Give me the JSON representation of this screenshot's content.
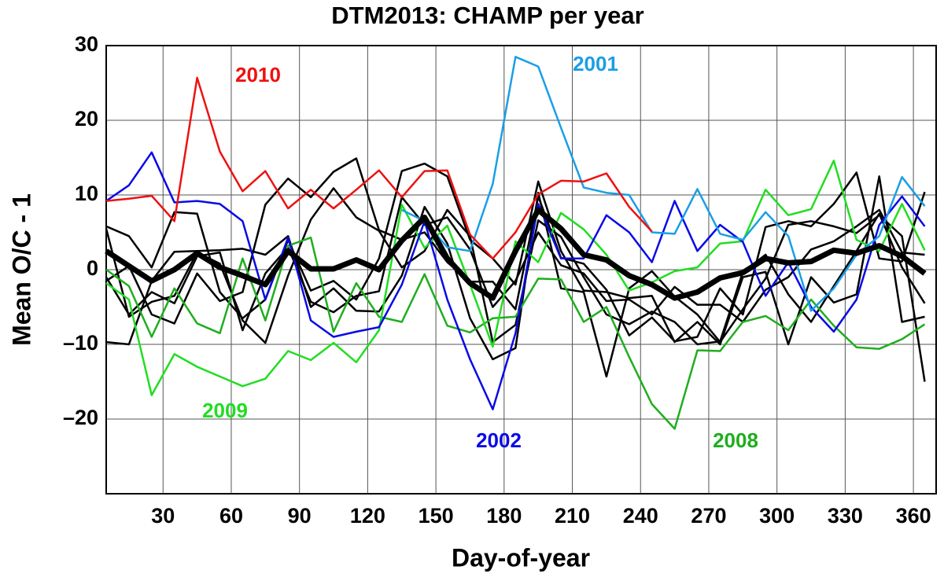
{
  "chart_data": {
    "type": "line",
    "title": "DTM2013: CHAMP per year",
    "x_label": "Day-of-year",
    "y_label": "Mean O/C - 1",
    "x": [
      5,
      15,
      25,
      35,
      45,
      55,
      65,
      75,
      85,
      95,
      105,
      115,
      125,
      135,
      145,
      155,
      165,
      175,
      185,
      195,
      205,
      215,
      225,
      235,
      245,
      255,
      265,
      275,
      285,
      295,
      305,
      315,
      325,
      335,
      345,
      355,
      365
    ],
    "xlim": [
      5,
      370
    ],
    "xticks": [
      30,
      60,
      90,
      120,
      150,
      180,
      210,
      240,
      270,
      300,
      330,
      360
    ],
    "ylim": [
      -30,
      30
    ],
    "yticks": [
      30,
      20,
      10,
      0,
      {
        "value": -10,
        "label": "–10"
      },
      {
        "value": -20,
        "label": "–20"
      }
    ],
    "grid": true,
    "series": [
      {
        "color": "#000000",
        "values": [
          5.8,
          4.5,
          0.3,
          7.7,
          7.5,
          -3,
          -6.5,
          -4,
          4,
          -2.8,
          -1.5,
          -4,
          1.5,
          13.2,
          14.2,
          12.5,
          4,
          1.5,
          -2,
          11.8,
          2.5,
          -2.8,
          -3,
          -3.8,
          -3.5,
          -9.7,
          -7,
          -10,
          -1,
          -0.3,
          -10,
          -1,
          -4.4,
          -3.3,
          12.5,
          -7,
          -6.3
        ]
      },
      {
        "color": "#000000",
        "values": [
          -9.7,
          -10,
          -1.5,
          2.4,
          2.5,
          2.6,
          2.8,
          2,
          4.5,
          -5,
          -2.5,
          -5.5,
          -5.6,
          -0.8,
          8.4,
          3.5,
          -6.5,
          -12,
          -10.5,
          10.3,
          -2.5,
          -3,
          -14.3,
          -2.5,
          -0.2,
          -3.6,
          -6,
          -9.7,
          -5.3,
          -1.2,
          6,
          6.5,
          5.8,
          4.9,
          7.3,
          4.5,
          -15
        ]
      },
      {
        "color": "#000000",
        "values": [
          -1.5,
          0.5,
          -6,
          -7.2,
          -0.5,
          -4.2,
          -3,
          8.7,
          12.2,
          9.7,
          13.1,
          14.9,
          5.3,
          4,
          5,
          1,
          -1.6,
          -1.6,
          -5.3,
          9.8,
          1.6,
          0.8,
          -2.7,
          -8.8,
          -6.4,
          -9.6,
          -9,
          -2.5,
          -6,
          5.7,
          6.5,
          5.8,
          8.8,
          13,
          1.5,
          1.1,
          10.4
        ]
      },
      {
        "color": "#000000",
        "values": [
          5.5,
          -6.3,
          -4.3,
          -3.5,
          2.3,
          0.8,
          -6.8,
          -9.8,
          -0.8,
          6.7,
          10.9,
          7,
          5.2,
          0.3,
          2.5,
          8,
          4.5,
          -9.7,
          -7.4,
          6.6,
          4.4,
          -1,
          -6,
          -7.3,
          -5.6,
          -7,
          -10,
          -9.6,
          -0.3,
          2,
          -3.3,
          -7,
          -2.2,
          2.5,
          7.5,
          0.3,
          -4.5
        ]
      },
      {
        "color": "#000000",
        "values": [
          -1,
          -6,
          -3,
          -4.5,
          1.8,
          2.3,
          -8.1,
          -0.5,
          3,
          -4.3,
          -5.7,
          -3.5,
          -2.9,
          9.7,
          6,
          7,
          2.7,
          -5,
          -1.5,
          5,
          0.6,
          -0.5,
          -4.2,
          -4,
          -6,
          -2.3,
          -4.7,
          -4.7,
          -7,
          -2.7,
          -1,
          2.7,
          3.8,
          5.8,
          8,
          2.3,
          2
        ]
      },
      {
        "name": "2008",
        "color": "#1fae1f",
        "values": [
          0,
          -2.2,
          -9,
          -2.5,
          -7.2,
          -8.5,
          1.5,
          -6.8,
          3.2,
          4.3,
          -8.3,
          -1.8,
          -6.3,
          -7,
          -0.6,
          -7.5,
          -8.4,
          -6.5,
          -6.3,
          -1.2,
          -1.3,
          -7,
          -5,
          -11.7,
          -18,
          -21.3,
          -10.8,
          -10.9,
          -7,
          -6.2,
          -8.1,
          -4,
          -7.5,
          -10.4,
          -10.6,
          -9.3,
          -7.3
        ]
      },
      {
        "name": "2009",
        "color": "#22dd22",
        "values": [
          -1.8,
          -4,
          -16.8,
          -11.3,
          -13,
          -14.3,
          -15.6,
          -14.6,
          -10.9,
          -12.1,
          -9.8,
          -12.4,
          -8.1,
          8.7,
          2.9,
          5.9,
          -2,
          -10.3,
          3.8,
          1,
          7.6,
          5.4,
          2,
          -2.8,
          -1.7,
          -0.2,
          0.3,
          3.5,
          3.8,
          10.7,
          7.3,
          8.1,
          14.6,
          4,
          2.5,
          8.8,
          2.6
        ]
      },
      {
        "name": "2002",
        "color": "#0a0ae6",
        "values": [
          9.2,
          11.3,
          15.7,
          9,
          9.2,
          8.8,
          6.5,
          -4,
          4.3,
          -6.8,
          -9,
          -8.3,
          -7.7,
          -2,
          6.5,
          -4,
          -12,
          -18.7,
          -8.5,
          8.8,
          1.5,
          1.5,
          7.3,
          5,
          1,
          9.2,
          2.5,
          6,
          3.7,
          -3.5,
          1,
          -5,
          -8.3,
          -4,
          6,
          9.8,
          5.8
        ]
      },
      {
        "name": "2001",
        "color": "#1a9ee6",
        "values": [
          null,
          null,
          null,
          null,
          null,
          null,
          null,
          null,
          null,
          null,
          null,
          null,
          null,
          8,
          6.5,
          3,
          2.5,
          11.5,
          28.5,
          27.2,
          19,
          11,
          10.3,
          10,
          5,
          4.8,
          10.8,
          4.8,
          4,
          7.7,
          4.5,
          -5.5,
          -2.5,
          2,
          4.5,
          12.4,
          8.5
        ]
      },
      {
        "name": "2010",
        "color": "#ee1111",
        "values": [
          9.2,
          9.5,
          9.9,
          6.5,
          25.7,
          15.8,
          10.5,
          13.2,
          8.2,
          10.7,
          8.2,
          10.7,
          13.3,
          9.7,
          13.2,
          13.3,
          4.7,
          1.5,
          5,
          10.1,
          11.9,
          11.8,
          12.9,
          8.4,
          5.1,
          null,
          null,
          null,
          null,
          null,
          null,
          null,
          null,
          null,
          null,
          null,
          null
        ]
      },
      {
        "color": "#000000",
        "values": [
          2.5,
          0.5,
          -1.5,
          0,
          2.2,
          0.3,
          -0.8,
          -2,
          2.5,
          0.1,
          0.1,
          1.3,
          0,
          3.9,
          7,
          1.5,
          -1.8,
          -3.8,
          2.5,
          8,
          5.5,
          2,
          1.3,
          -0.8,
          -2,
          -3.8,
          -3,
          -1.1,
          -0.4,
          1.5,
          0.9,
          1.1,
          2.6,
          2.2,
          3.2,
          1.8,
          -0.5
        ]
      }
    ]
  }
}
